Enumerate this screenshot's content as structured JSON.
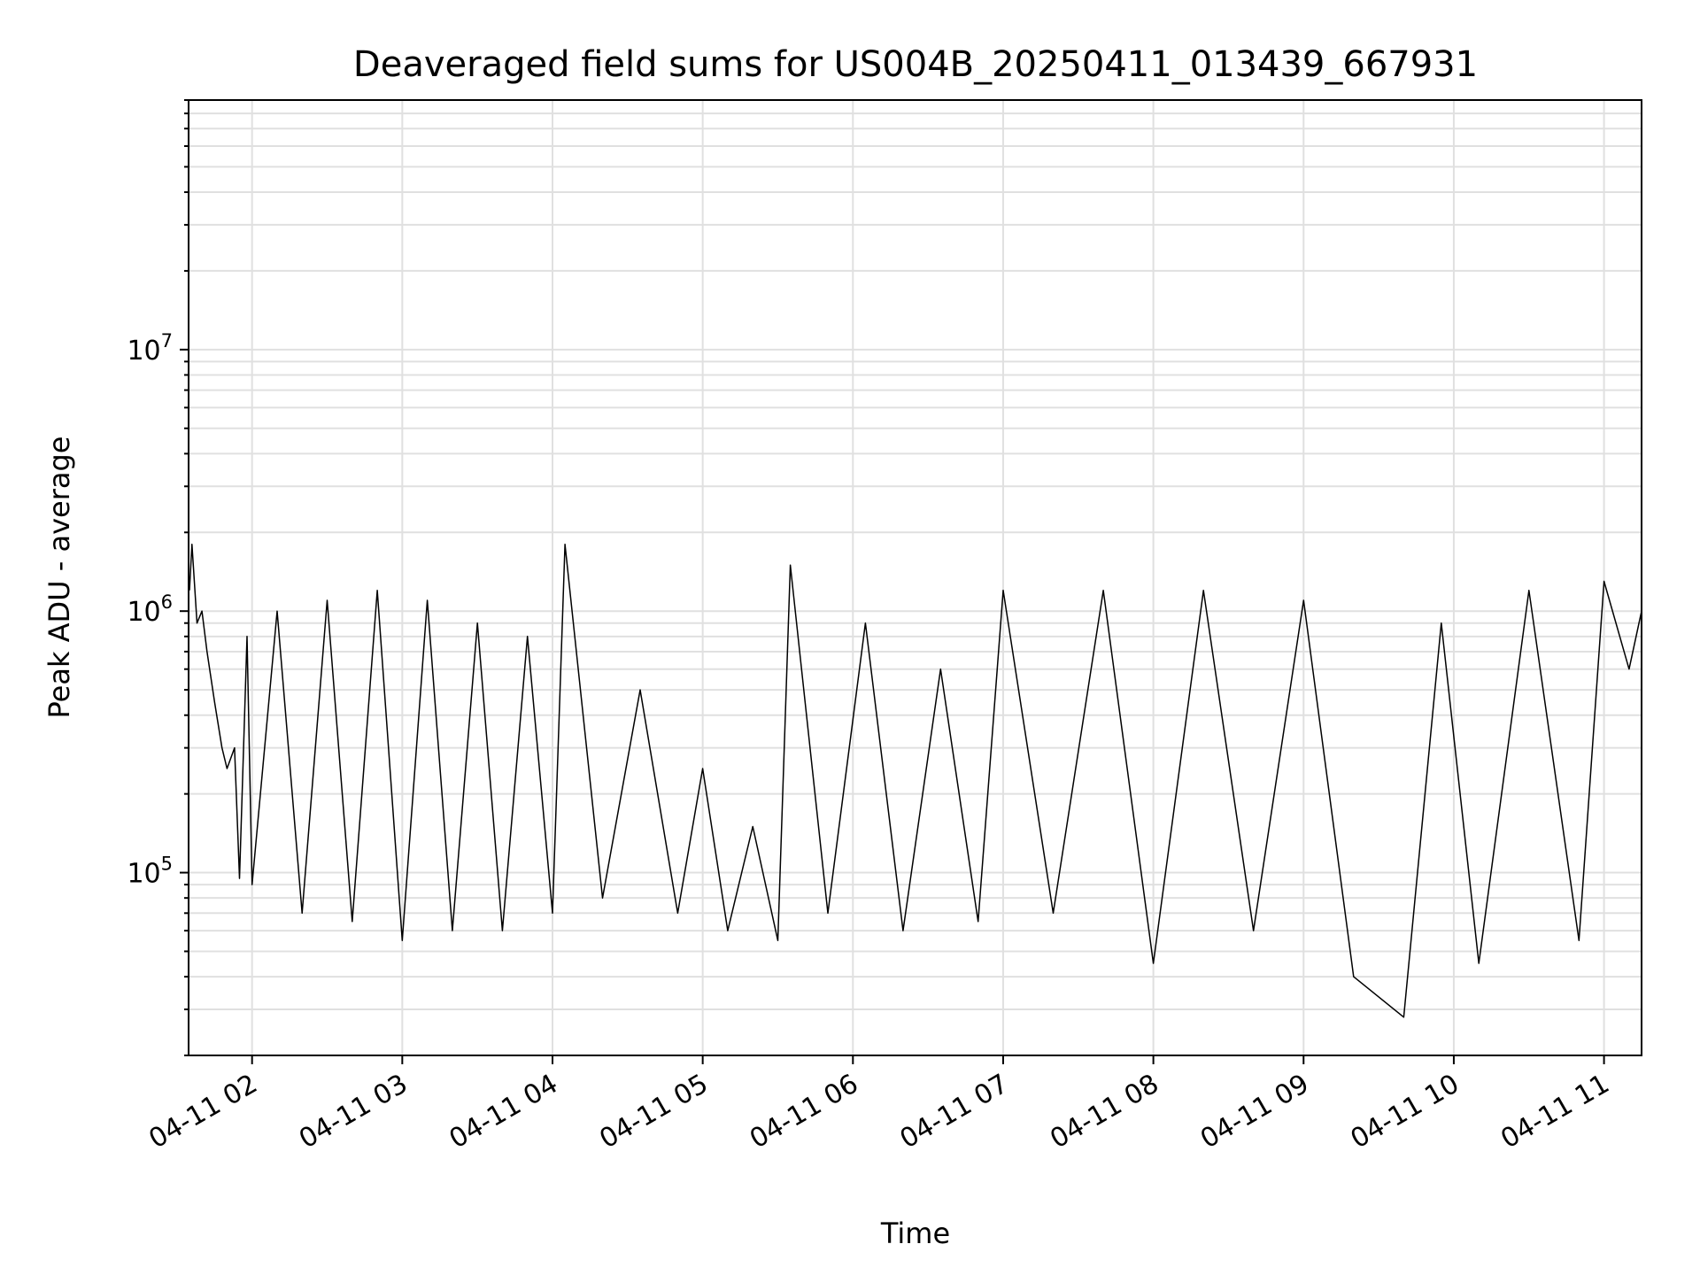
{
  "chart_data": {
    "type": "line",
    "title": "Deaveraged field sums for US004B_20250411_013439_667931",
    "xlabel": "Time",
    "ylabel": "Peak ADU - average",
    "yscale": "log",
    "ylim": [
      20000,
      90000000
    ],
    "xlim": [
      "2025-04-11 01:34:39",
      "2025-04-11 11:15:00"
    ],
    "grid": true,
    "line_color": "#000000",
    "grid_color": "#e0e0e0",
    "x_ticks": [
      {
        "t": "2025-04-11 02:00",
        "label": "04-11 02"
      },
      {
        "t": "2025-04-11 03:00",
        "label": "04-11 03"
      },
      {
        "t": "2025-04-11 04:00",
        "label": "04-11 04"
      },
      {
        "t": "2025-04-11 05:00",
        "label": "04-11 05"
      },
      {
        "t": "2025-04-11 06:00",
        "label": "04-11 06"
      },
      {
        "t": "2025-04-11 07:00",
        "label": "04-11 07"
      },
      {
        "t": "2025-04-11 08:00",
        "label": "04-11 08"
      },
      {
        "t": "2025-04-11 09:00",
        "label": "04-11 09"
      },
      {
        "t": "2025-04-11 10:00",
        "label": "04-11 10"
      },
      {
        "t": "2025-04-11 11:00",
        "label": "04-11 11"
      }
    ],
    "y_ticks": [
      {
        "value": 100000,
        "base": "10",
        "exp": "5"
      },
      {
        "value": 1000000,
        "base": "10",
        "exp": "6"
      },
      {
        "value": 10000000,
        "base": "10",
        "exp": "7"
      }
    ],
    "series": [
      {
        "points": [
          [
            "2025-04-11 01:35",
            1200000
          ],
          [
            "2025-04-11 01:36",
            1800000
          ],
          [
            "2025-04-11 01:38",
            900000
          ],
          [
            "2025-04-11 01:40",
            1000000
          ],
          [
            "2025-04-11 01:42",
            700000
          ],
          [
            "2025-04-11 01:45",
            450000
          ],
          [
            "2025-04-11 01:48",
            300000
          ],
          [
            "2025-04-11 01:50",
            250000
          ],
          [
            "2025-04-11 01:53",
            300000
          ],
          [
            "2025-04-11 01:55",
            95000
          ],
          [
            "2025-04-11 01:58",
            800000
          ],
          [
            "2025-04-11 02:00",
            90000
          ],
          [
            "2025-04-11 02:10",
            1000000
          ],
          [
            "2025-04-11 02:20",
            70000
          ],
          [
            "2025-04-11 02:30",
            1100000
          ],
          [
            "2025-04-11 02:40",
            65000
          ],
          [
            "2025-04-11 02:50",
            1200000
          ],
          [
            "2025-04-11 03:00",
            55000
          ],
          [
            "2025-04-11 03:10",
            1100000
          ],
          [
            "2025-04-11 03:20",
            60000
          ],
          [
            "2025-04-11 03:30",
            900000
          ],
          [
            "2025-04-11 03:40",
            60000
          ],
          [
            "2025-04-11 03:50",
            800000
          ],
          [
            "2025-04-11 04:00",
            70000
          ],
          [
            "2025-04-11 04:05",
            1800000
          ],
          [
            "2025-04-11 04:20",
            80000
          ],
          [
            "2025-04-11 04:35",
            500000
          ],
          [
            "2025-04-11 04:50",
            70000
          ],
          [
            "2025-04-11 05:00",
            250000
          ],
          [
            "2025-04-11 05:10",
            60000
          ],
          [
            "2025-04-11 05:20",
            150000
          ],
          [
            "2025-04-11 05:30",
            55000
          ],
          [
            "2025-04-11 05:35",
            1500000
          ],
          [
            "2025-04-11 05:50",
            70000
          ],
          [
            "2025-04-11 06:05",
            900000
          ],
          [
            "2025-04-11 06:20",
            60000
          ],
          [
            "2025-04-11 06:35",
            600000
          ],
          [
            "2025-04-11 06:50",
            65000
          ],
          [
            "2025-04-11 07:00",
            1200000
          ],
          [
            "2025-04-11 07:20",
            70000
          ],
          [
            "2025-04-11 07:40",
            1200000
          ],
          [
            "2025-04-11 08:00",
            45000
          ],
          [
            "2025-04-11 08:20",
            1200000
          ],
          [
            "2025-04-11 08:40",
            60000
          ],
          [
            "2025-04-11 09:00",
            1100000
          ],
          [
            "2025-04-11 09:20",
            40000
          ],
          [
            "2025-04-11 09:40",
            28000
          ],
          [
            "2025-04-11 09:55",
            900000
          ],
          [
            "2025-04-11 10:10",
            45000
          ],
          [
            "2025-04-11 10:30",
            1200000
          ],
          [
            "2025-04-11 10:50",
            55000
          ],
          [
            "2025-04-11 11:00",
            1300000
          ],
          [
            "2025-04-11 11:10",
            600000
          ],
          [
            "2025-04-11 11:15",
            1000000
          ]
        ]
      }
    ]
  }
}
